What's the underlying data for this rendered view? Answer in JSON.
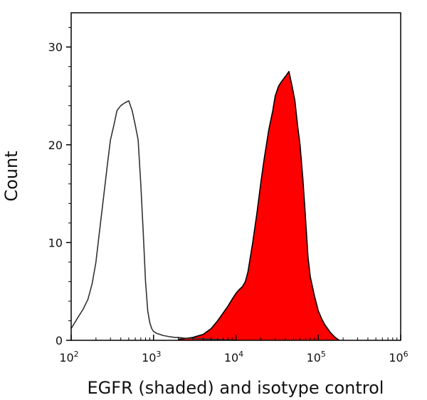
{
  "chart_data": {
    "type": "area",
    "xlabel": "EGFR (shaded) and isotype control",
    "ylabel": "Count",
    "x_scale": "log10",
    "xlim": [
      100,
      1000000
    ],
    "ylim": [
      0,
      33.5
    ],
    "x_ticks": [
      {
        "value": 100,
        "base": "10",
        "exp": "2"
      },
      {
        "value": 1000,
        "base": "10",
        "exp": "3"
      },
      {
        "value": 10000,
        "base": "10",
        "exp": "4"
      },
      {
        "value": 100000,
        "base": "10",
        "exp": "5"
      },
      {
        "value": 1000000,
        "base": "10",
        "exp": "6"
      }
    ],
    "y_ticks": [
      {
        "value": 0,
        "label": "0"
      },
      {
        "value": 10,
        "label": "10"
      },
      {
        "value": 20,
        "label": "20"
      },
      {
        "value": 30,
        "label": "30"
      }
    ],
    "series": [
      {
        "style": "filled",
        "fill_color": "#ff0000",
        "line_color": "#000000",
        "x": [
          2000,
          3000,
          4000,
          5000,
          6000,
          7000,
          8000,
          9000,
          10000,
          11000,
          12000,
          13000,
          14000,
          16000,
          18000,
          20000,
          22000,
          25000,
          28000,
          30000,
          33000,
          36000,
          40000,
          44000,
          48000,
          52000,
          56000,
          60000,
          65000,
          70000,
          75000,
          80000,
          90000,
          100000,
          110000,
          120000,
          140000,
          160000,
          180000
        ],
        "y": [
          0.1,
          0.3,
          0.6,
          1.2,
          2.0,
          2.8,
          3.5,
          4.2,
          4.8,
          5.2,
          5.5,
          6.0,
          7.0,
          10.0,
          13.0,
          16.0,
          18.5,
          21.5,
          23.5,
          25.0,
          26.0,
          26.5,
          27.0,
          27.5,
          26.0,
          24.5,
          22.0,
          20.0,
          16.5,
          12.5,
          8.5,
          6.5,
          4.5,
          3.0,
          2.2,
          1.6,
          0.8,
          0.3,
          0.0
        ]
      },
      {
        "style": "outline",
        "line_color": "#333333",
        "x": [
          100,
          120,
          140,
          160,
          180,
          200,
          220,
          250,
          280,
          300,
          330,
          360,
          400,
          450,
          500,
          550,
          600,
          650,
          700,
          750,
          800,
          850,
          900,
          950,
          1000,
          1100,
          1200,
          1300,
          1500,
          1800,
          2000,
          2500,
          3000,
          4000,
          5000,
          7000,
          10000
        ],
        "y": [
          1.2,
          2.3,
          3.2,
          4.2,
          5.8,
          8.0,
          11.0,
          15.0,
          18.5,
          20.5,
          22.0,
          23.5,
          24.0,
          24.3,
          24.5,
          23.5,
          22.0,
          20.5,
          16.0,
          11.0,
          6.0,
          3.0,
          1.8,
          1.2,
          0.9,
          0.7,
          0.6,
          0.5,
          0.4,
          0.3,
          0.3,
          0.2,
          0.2,
          0.15,
          0.1,
          0.05,
          0.0
        ]
      }
    ]
  }
}
